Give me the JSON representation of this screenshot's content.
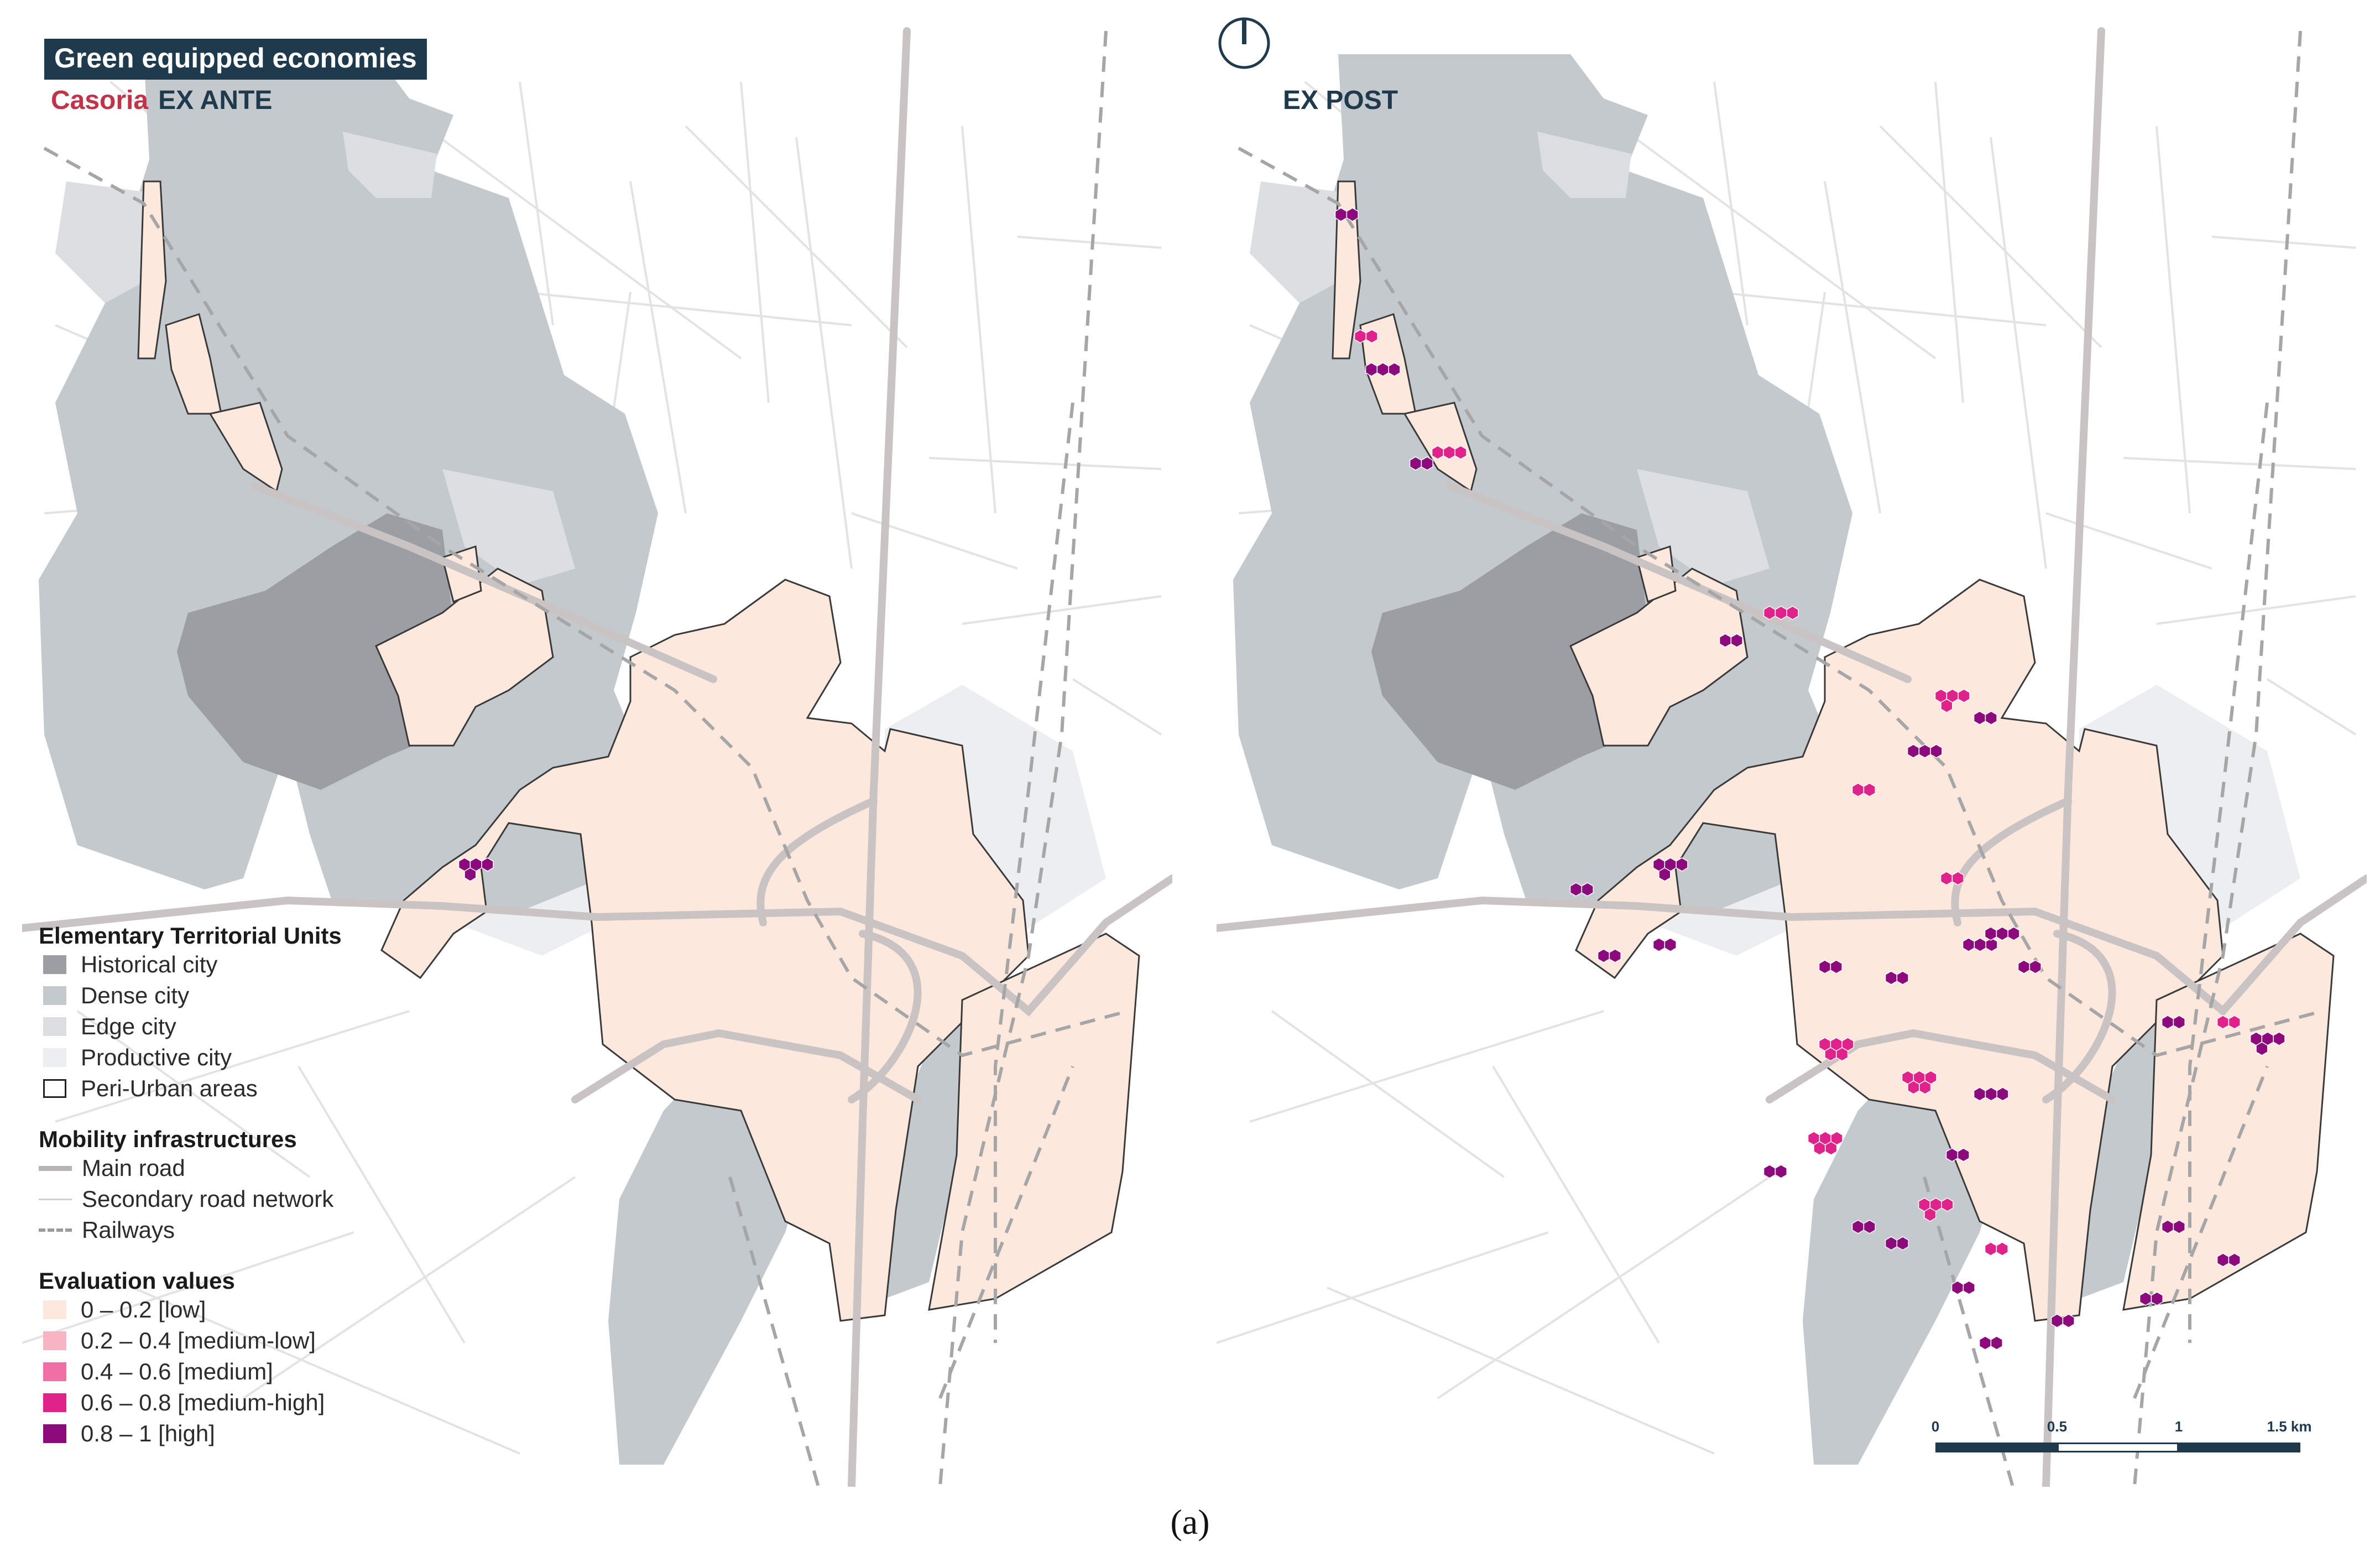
{
  "title": "Green equipped economies",
  "left_panel": {
    "city": "Casoria",
    "phase": "EX ANTE"
  },
  "right_panel": {
    "phase": "EX POST"
  },
  "legend": {
    "territorial": {
      "heading": "Elementary Territorial Units",
      "items": [
        {
          "label": "Historical city",
          "color": "#9b9fa3"
        },
        {
          "label": "Dense city",
          "color": "#c3c9cd"
        },
        {
          "label": "Edge city",
          "color": "#dcdfe1"
        },
        {
          "label": "Productive city",
          "color": "#eceeef"
        },
        {
          "label": "Peri-Urban areas",
          "color": "#ffffff"
        }
      ]
    },
    "mobility": {
      "heading": "Mobility infrastructures",
      "items": [
        {
          "label": "Main road",
          "style": "main-road"
        },
        {
          "label": "Secondary road network",
          "style": "secondary-road"
        },
        {
          "label": "Railways",
          "style": "railway"
        }
      ]
    },
    "evaluation": {
      "heading": "Evaluation values",
      "items": [
        {
          "label": "0 – 0.2 [low]",
          "color": "#fde8de"
        },
        {
          "label": "0.2 – 0.4 [medium-low]",
          "color": "#f8b4c0"
        },
        {
          "label": "0.4 – 0.6 [medium]",
          "color": "#f06fa4"
        },
        {
          "label": "0.6 – 0.8 [medium-high]",
          "color": "#e0238b"
        },
        {
          "label": "0.8 – 1 [high]",
          "color": "#8b0a7c"
        }
      ]
    }
  },
  "scale_bar": {
    "labels": [
      "0",
      "0.5",
      "1",
      "1.5 km"
    ]
  },
  "caption": "(a)",
  "colors": {
    "historical": "#9b9fa3",
    "dense": "#c3c9cd",
    "edge": "#dcdfe1",
    "productive": "#eceeef",
    "periurban_fill": "#fde8de",
    "road": "#c9c3c3",
    "rail": "#a6a6a6",
    "navy": "#1f3a4d"
  }
}
